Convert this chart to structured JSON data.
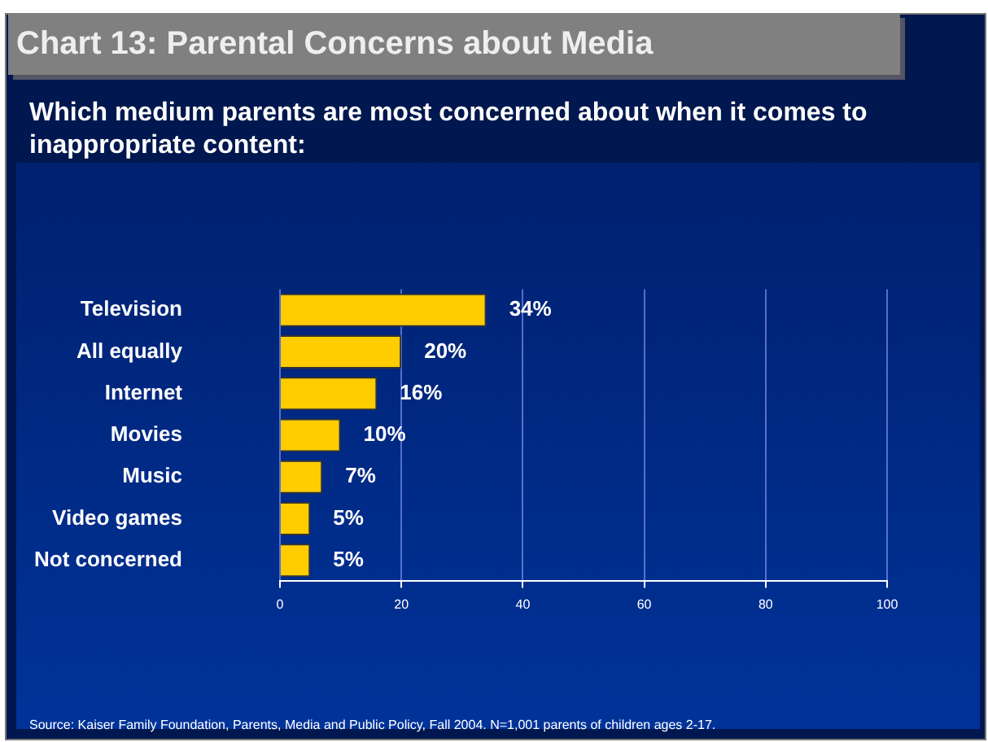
{
  "chart_data": {
    "type": "bar",
    "orientation": "horizontal",
    "title": "Chart 13: Parental Concerns about Media",
    "subtitle": "Which medium parents are most concerned about when it comes to inappropriate content:",
    "categories": [
      "Television",
      "All equally",
      "Internet",
      "Movies",
      "Music",
      "Video games",
      "Not concerned"
    ],
    "values": [
      34,
      20,
      16,
      10,
      7,
      5,
      5
    ],
    "value_labels": [
      "34%",
      "20%",
      "16%",
      "10%",
      "7%",
      "5%",
      "5%"
    ],
    "color": "#ffcc00",
    "xlim": [
      0,
      100
    ],
    "xticks": [
      0,
      20,
      40,
      60,
      80,
      100
    ],
    "grid": "x",
    "annotations": [
      "Source: Kaiser Family Foundation, Parents, Media and Public Policy, Fall 2004. N=1,001 parents of children ages 2-17."
    ]
  }
}
